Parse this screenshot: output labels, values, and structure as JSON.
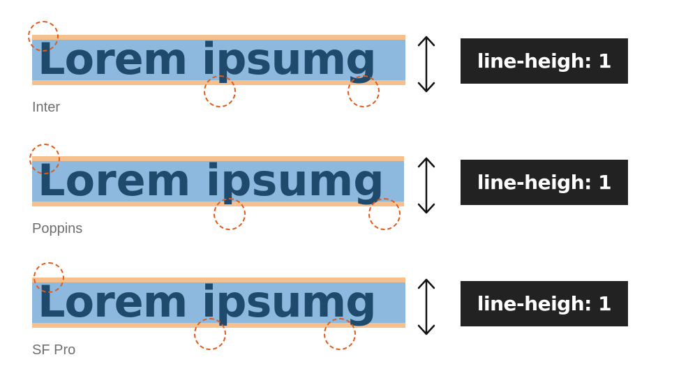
{
  "rows": [
    {
      "sample_text": "Lorem ipsumg",
      "font_name": "Inter",
      "line_height_label": "line-heigh: 1"
    },
    {
      "sample_text": "Lorem ipsumg",
      "font_name": "Poppins",
      "line_height_label": "line-heigh: 1"
    },
    {
      "sample_text": "Lorem ipsumg",
      "font_name": "SF Pro",
      "line_height_label": "line-heigh: 1"
    }
  ],
  "colors": {
    "text_blue": "#1f4a6c",
    "band_blue": "#8db9de",
    "band_orange": "#f6c08e",
    "highlight_circle": "#e25a1c",
    "label_bg": "#222222",
    "label_text": "#ffffff",
    "caption_gray": "#6e6e6e"
  },
  "icons": {
    "arrow": "double-headed-vertical-arrow-icon",
    "circle": "dashed-circle-highlight"
  }
}
